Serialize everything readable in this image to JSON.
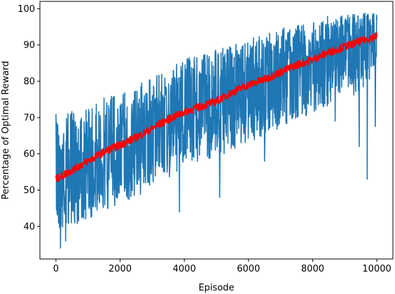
{
  "chart_data": {
    "type": "line",
    "title": "",
    "xlabel": "Episode",
    "ylabel": "Percentage of Optimal Reward",
    "xlim": [
      -500,
      10500
    ],
    "ylim": [
      31,
      102
    ],
    "x_ticks": [
      0,
      2000,
      4000,
      6000,
      8000,
      10000
    ],
    "y_ticks": [
      40,
      50,
      60,
      70,
      80,
      90,
      100
    ],
    "grid": false,
    "legend": "none",
    "series": [
      {
        "color": "#1f77b4",
        "style": "noisy per-episode values",
        "x": [
          0,
          500,
          1000,
          1500,
          2000,
          2500,
          3000,
          3500,
          4000,
          4500,
          5000,
          5500,
          6000,
          6500,
          7000,
          7500,
          8000,
          8500,
          9000,
          9500,
          10000
        ],
        "center": [
          53,
          55,
          57,
          59.5,
          62,
          64,
          66.5,
          69,
          71,
          72.5,
          74,
          76,
          78,
          79.5,
          81.5,
          83.5,
          85.5,
          87.5,
          89,
          91,
          92
        ],
        "upper": [
          72,
          72,
          73,
          76,
          78,
          79,
          81,
          84,
          86,
          88,
          89,
          90,
          92,
          93,
          95,
          96,
          97,
          98,
          98,
          99,
          99
        ],
        "lower": [
          38,
          40,
          42,
          44,
          46,
          48,
          51,
          53,
          56,
          58,
          59,
          61,
          63,
          65,
          67,
          69,
          71,
          73,
          75,
          77,
          80
        ],
        "outliers": [
          [
            140,
            34
          ],
          [
            300,
            36
          ],
          [
            3850,
            44
          ],
          [
            5100,
            48
          ],
          [
            6500,
            58
          ],
          [
            8700,
            69
          ],
          [
            9450,
            62
          ],
          [
            9700,
            53
          ],
          [
            9950,
            67.5
          ]
        ]
      },
      {
        "color": "#ff0000",
        "style": "moving average",
        "x": [
          0,
          500,
          1000,
          1500,
          2000,
          2500,
          3000,
          3500,
          4000,
          4500,
          5000,
          5500,
          6000,
          6500,
          7000,
          7500,
          8000,
          8500,
          9000,
          9500,
          10000
        ],
        "values": [
          53,
          55.5,
          58,
          60.5,
          62.5,
          64.5,
          67,
          69.5,
          71.5,
          73,
          74.5,
          77,
          79,
          80.5,
          82.5,
          84.5,
          86,
          88,
          89.5,
          91,
          92.5
        ]
      }
    ]
  }
}
